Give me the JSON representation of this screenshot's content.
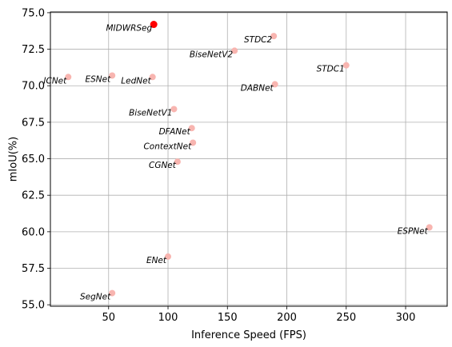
{
  "chart_data": {
    "type": "scatter",
    "title": "",
    "xlabel": "Inference Speed (FPS)",
    "ylabel": "mIoU(%)",
    "xlim": [
      1,
      335
    ],
    "ylim": [
      54.9,
      75.05
    ],
    "xticks": [
      50,
      100,
      150,
      200,
      250,
      300
    ],
    "yticks": [
      55.0,
      57.5,
      60.0,
      62.5,
      65.0,
      67.5,
      70.0,
      72.5,
      75.0
    ],
    "grid": true,
    "points": [
      {
        "name": "MIDWRSeg",
        "x": 88,
        "y": 74.2,
        "highlight": true,
        "label_side": "left"
      },
      {
        "name": "STDC2",
        "x": 189,
        "y": 73.4,
        "highlight": false,
        "label_side": "left"
      },
      {
        "name": "BiseNetV2",
        "x": 156,
        "y": 72.4,
        "highlight": false,
        "label_side": "left"
      },
      {
        "name": "STDC1",
        "x": 250,
        "y": 71.4,
        "highlight": false,
        "label_side": "left"
      },
      {
        "name": "ICNet",
        "x": 16,
        "y": 70.6,
        "highlight": false,
        "label_side": "left"
      },
      {
        "name": "ESNet",
        "x": 53,
        "y": 70.7,
        "highlight": false,
        "label_side": "left"
      },
      {
        "name": "LedNet",
        "x": 87,
        "y": 70.6,
        "highlight": false,
        "label_side": "left"
      },
      {
        "name": "DABNet",
        "x": 190,
        "y": 70.1,
        "highlight": false,
        "label_side": "left"
      },
      {
        "name": "BiseNetV1",
        "x": 105,
        "y": 68.4,
        "highlight": false,
        "label_side": "left"
      },
      {
        "name": "DFANet",
        "x": 120,
        "y": 67.1,
        "highlight": false,
        "label_side": "left"
      },
      {
        "name": "ContextNet",
        "x": 121,
        "y": 66.1,
        "highlight": false,
        "label_side": "left"
      },
      {
        "name": "CGNet",
        "x": 108,
        "y": 64.8,
        "highlight": false,
        "label_side": "left"
      },
      {
        "name": "ESPNet",
        "x": 320,
        "y": 60.3,
        "highlight": false,
        "label_side": "left"
      },
      {
        "name": "ENet",
        "x": 100,
        "y": 58.3,
        "highlight": false,
        "label_side": "left"
      },
      {
        "name": "SegNet",
        "x": 53,
        "y": 55.8,
        "highlight": false,
        "label_side": "left"
      }
    ],
    "colors": {
      "point": "#f8b5b0",
      "highlight": "#ff0000",
      "grid": "#b0b0b0",
      "axis": "#000000"
    }
  }
}
